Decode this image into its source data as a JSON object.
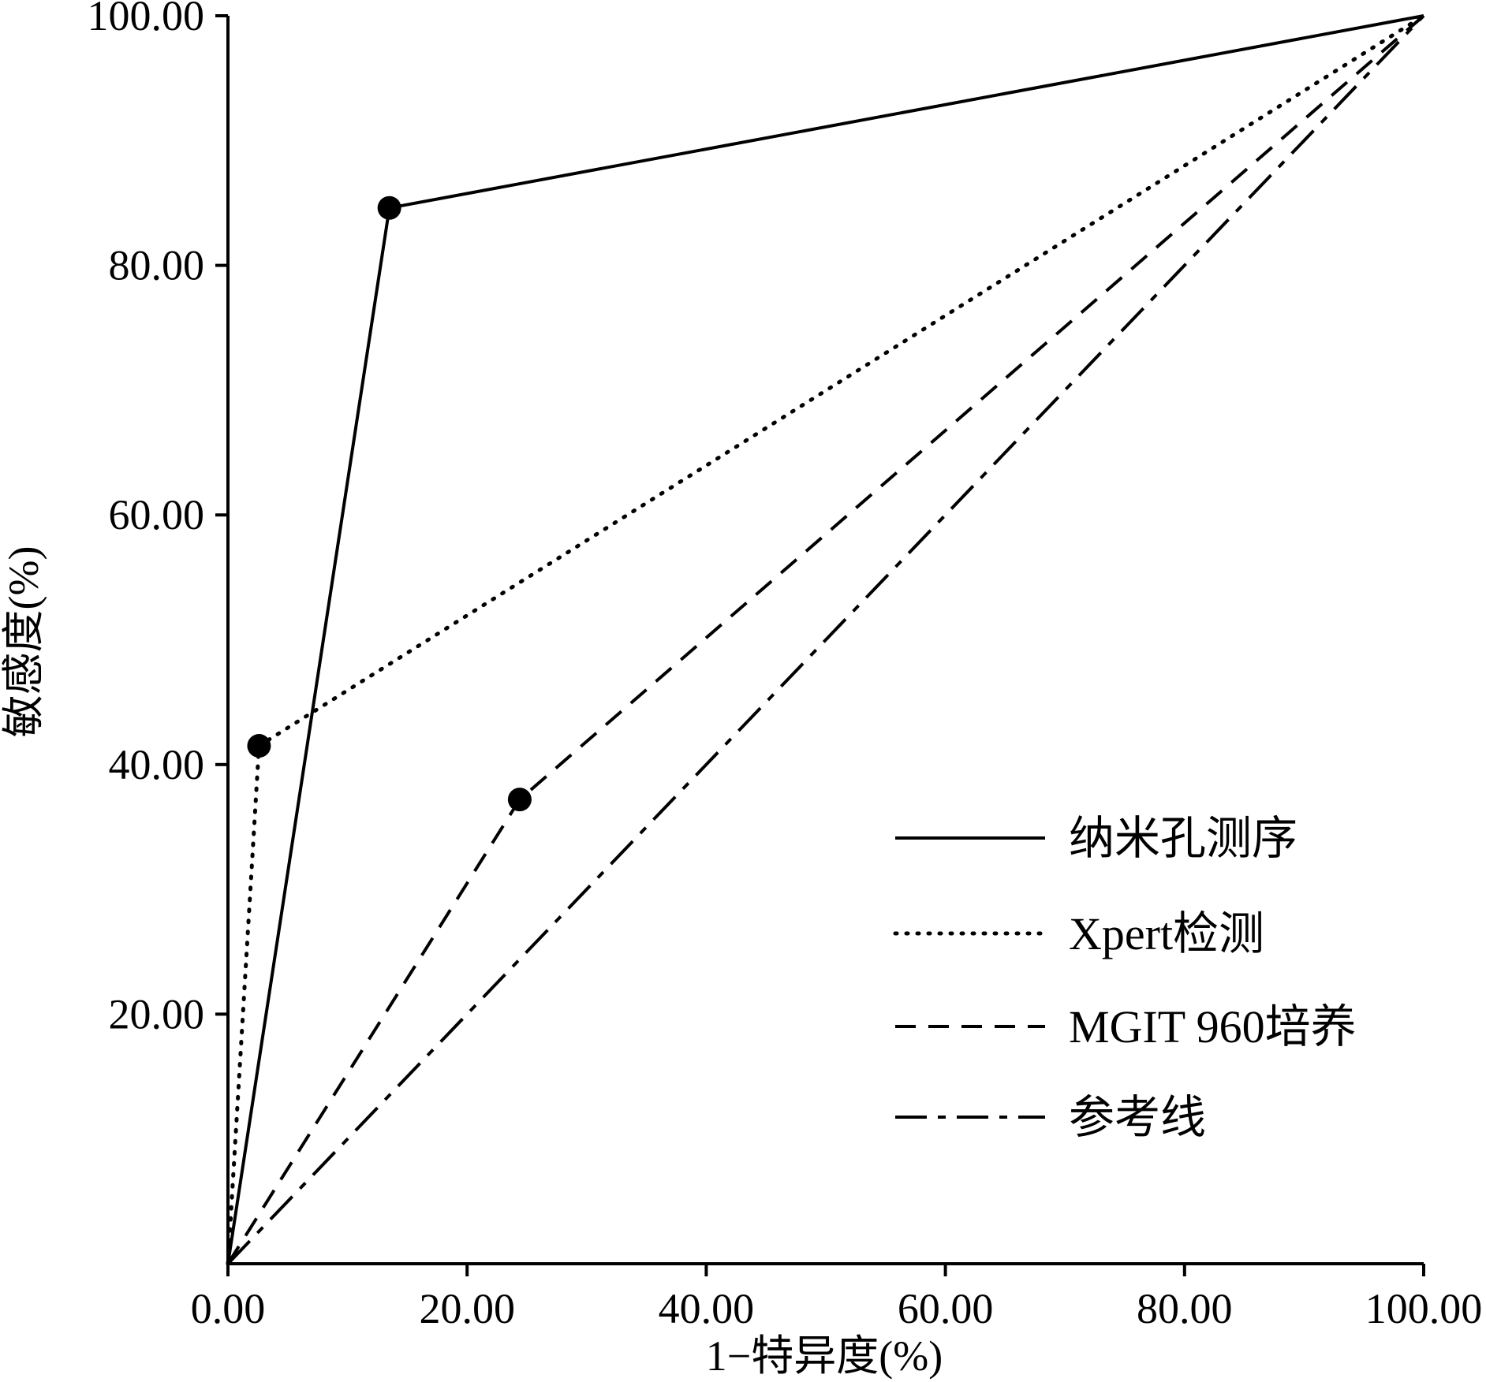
{
  "chart_data": {
    "type": "line",
    "xlabel": "1−特异度(%)",
    "ylabel": "敏感度(%)",
    "xlim": [
      0,
      100
    ],
    "ylim": [
      0,
      100
    ],
    "x_ticks": [
      "0.00",
      "20.00",
      "40.00",
      "60.00",
      "80.00",
      "100.00"
    ],
    "y_ticks": [
      "20.00",
      "40.00",
      "60.00",
      "80.00",
      "100.00"
    ],
    "x_tick_values": [
      0,
      20,
      40,
      60,
      80,
      100
    ],
    "y_tick_values": [
      20,
      40,
      60,
      80,
      100
    ],
    "grid": false,
    "legend_position": "bottom-right",
    "series": [
      {
        "name": "纳米孔测序",
        "style": "solid",
        "color": "#000000",
        "points": [
          [
            0,
            0
          ],
          [
            13.5,
            84.6
          ],
          [
            100,
            100
          ]
        ],
        "marker_index": 1
      },
      {
        "name": "Xpert检测",
        "style": "dotted",
        "color": "#000000",
        "points": [
          [
            0,
            0
          ],
          [
            2.6,
            41.5
          ],
          [
            100,
            100
          ]
        ],
        "marker_index": 1
      },
      {
        "name": "MGIT 960培养",
        "style": "dashed",
        "color": "#000000",
        "points": [
          [
            0,
            0
          ],
          [
            24.4,
            37.2
          ],
          [
            100,
            100
          ]
        ],
        "marker_index": 1
      },
      {
        "name": "参考线",
        "style": "dashdot",
        "color": "#000000",
        "points": [
          [
            0,
            0
          ],
          [
            100,
            100
          ]
        ],
        "marker_index": null
      }
    ]
  }
}
